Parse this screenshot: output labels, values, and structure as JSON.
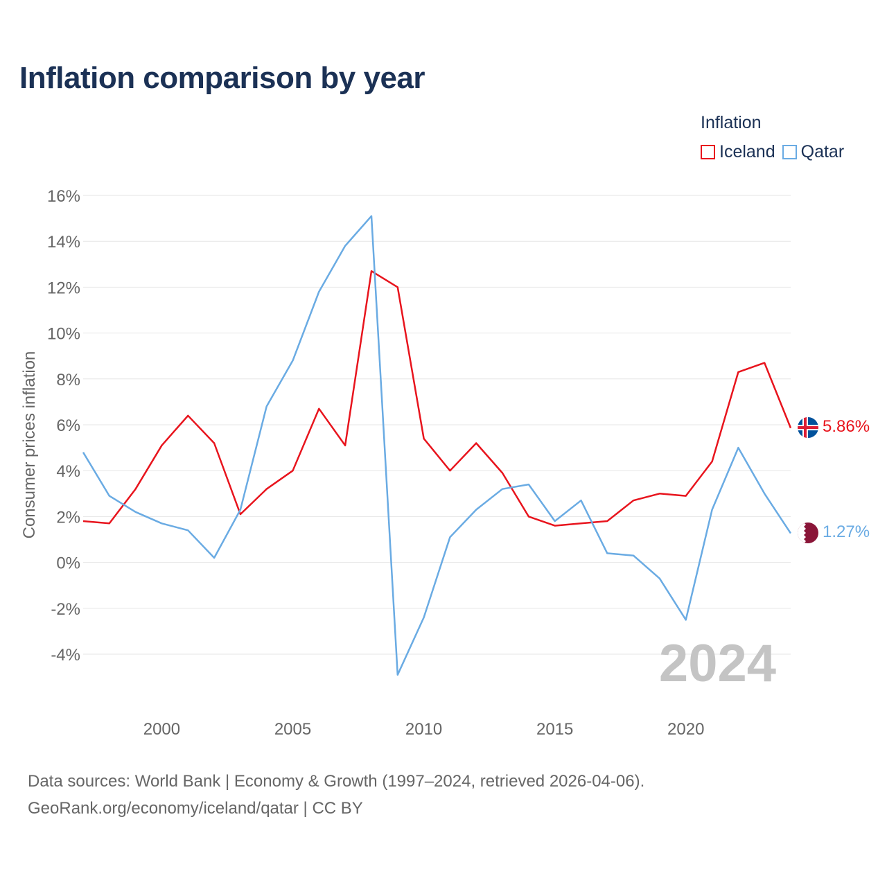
{
  "title": "Inflation comparison by year",
  "legend": {
    "title": "Inflation",
    "items": [
      {
        "label": "Iceland",
        "color": "#e8141d"
      },
      {
        "label": "Qatar",
        "color": "#6aabe3"
      }
    ]
  },
  "footer": {
    "line1": "Data sources: World Bank | Economy & Growth (1997–2024, retrieved 2026-04-06).",
    "line2": "GeoRank.org/economy/iceland/qatar | CC BY"
  },
  "chart_data": {
    "type": "line",
    "title": "Inflation comparison by year",
    "ylabel": "Consumer prices inflation",
    "xlabel": "",
    "year_watermark": "2024",
    "xlim": [
      1997,
      2024
    ],
    "ylim": [
      -6,
      16
    ],
    "x_ticks": [
      2000,
      2005,
      2010,
      2015,
      2020
    ],
    "y_ticks": [
      16,
      14,
      12,
      10,
      8,
      6,
      4,
      2,
      0,
      -2,
      -4
    ],
    "y_tick_labels": [
      "16%",
      "14%",
      "12%",
      "10%",
      "8%",
      "6%",
      "4%",
      "2%",
      "0%",
      "-2%",
      "-4%"
    ],
    "x": [
      1997,
      1998,
      1999,
      2000,
      2001,
      2002,
      2003,
      2004,
      2005,
      2006,
      2007,
      2008,
      2009,
      2010,
      2011,
      2012,
      2013,
      2014,
      2015,
      2016,
      2017,
      2018,
      2019,
      2020,
      2021,
      2022,
      2023,
      2024
    ],
    "series": [
      {
        "name": "Iceland",
        "color": "#e8141d",
        "end_label": "5.86%",
        "values": [
          1.8,
          1.7,
          3.2,
          5.1,
          6.4,
          5.2,
          2.1,
          3.2,
          4.0,
          6.7,
          5.1,
          12.7,
          12.0,
          5.4,
          4.0,
          5.2,
          3.9,
          2.0,
          1.6,
          1.7,
          1.8,
          2.7,
          3.0,
          2.9,
          4.4,
          8.3,
          8.7,
          5.86
        ]
      },
      {
        "name": "Qatar",
        "color": "#6aabe3",
        "end_label": "1.27%",
        "values": [
          4.8,
          2.9,
          2.2,
          1.7,
          1.4,
          0.2,
          2.3,
          6.8,
          8.8,
          11.8,
          13.8,
          15.1,
          -4.9,
          -2.4,
          1.1,
          2.3,
          3.2,
          3.4,
          1.8,
          2.7,
          0.4,
          0.3,
          -0.7,
          -2.5,
          2.3,
          5.0,
          3.0,
          1.27
        ]
      }
    ],
    "grid": true,
    "legend_position": "top-right"
  }
}
